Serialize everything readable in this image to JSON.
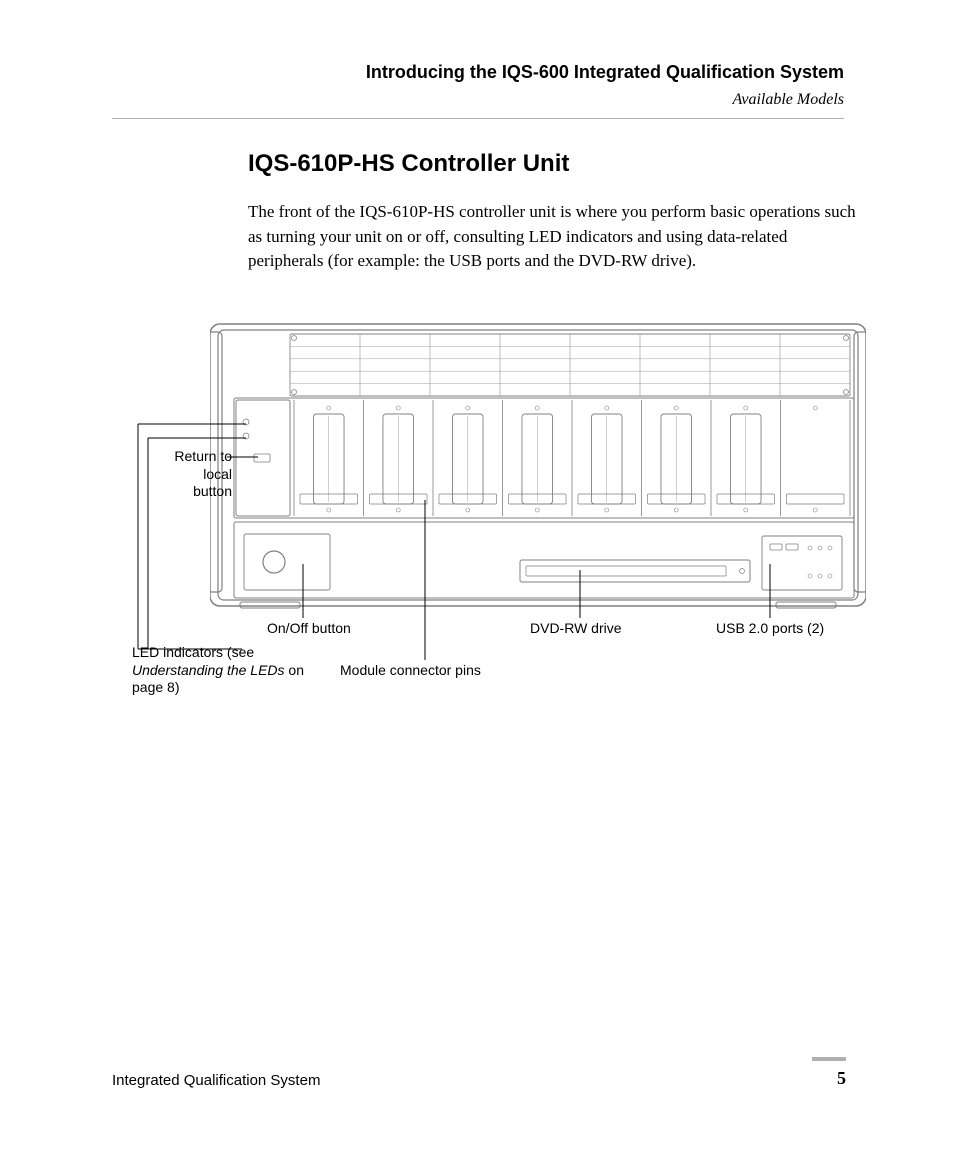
{
  "header": {
    "title": "Introducing the IQS-600 Integrated Qualification System",
    "subtitle": "Available Models"
  },
  "section": {
    "title": "IQS-610P-HS Controller Unit",
    "body": "The front of the IQS-610P-HS controller unit is where you perform basic operations such as turning your unit on or off, consulting LED indicators and using data-related peripherals (for example: the USB ports and the DVD-RW drive)."
  },
  "labels": {
    "return": "Return to local button",
    "onoff": "On/Off button",
    "led_prefix": "LED indicators (see ",
    "led_italic": "Understanding the LEDs",
    "led_suffix": " on page 8)",
    "module": "Module connector pins",
    "dvd": "DVD-RW drive",
    "usb": "USB 2.0 ports (2)"
  },
  "footer": {
    "left": "Integrated Qualification System",
    "page": "5"
  },
  "figure": {
    "chassis_stroke": "#808080",
    "chassis_fill": "#ffffff",
    "grid_stroke": "#a0a0a0",
    "num_slots": 8,
    "num_modules": 7
  }
}
